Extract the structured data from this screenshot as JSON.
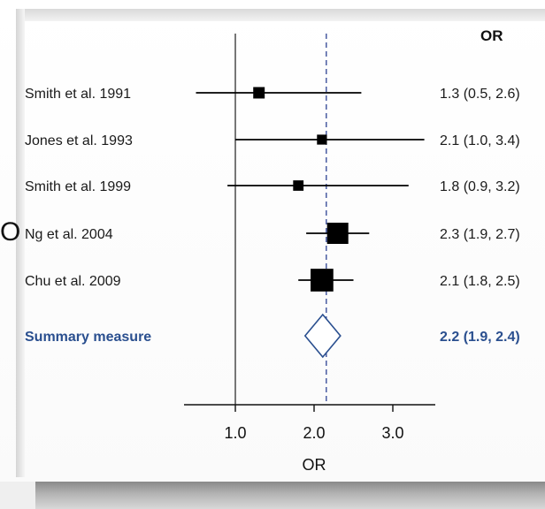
{
  "page_glyph": "O",
  "chart_data": {
    "type": "forest",
    "header": "OR",
    "xlabel": "OR",
    "xlim": [
      0.1,
      3.6
    ],
    "xticks": [
      1.0,
      2.0,
      3.0
    ],
    "xtick_labels": [
      "1.0",
      "2.0",
      "3.0"
    ],
    "null_line": 1.0,
    "reference_line": 2.2,
    "studies": [
      {
        "label": "Smith et al. 1991",
        "or": 1.3,
        "lo": 0.5,
        "hi": 2.6,
        "weight": 0.35,
        "text": "1.3 (0.5, 2.6)"
      },
      {
        "label": "Jones et al. 1993",
        "or": 2.1,
        "lo": 1.0,
        "hi": 3.4,
        "weight": 0.25,
        "text": "2.1 (1.0, 3.4)"
      },
      {
        "label": "Smith et al. 1999",
        "or": 1.8,
        "lo": 0.9,
        "hi": 3.2,
        "weight": 0.28,
        "text": "1.8 (0.9, 3.2)"
      },
      {
        "label": "Ng et al. 2004",
        "or": 2.3,
        "lo": 1.9,
        "hi": 2.7,
        "weight": 1.0,
        "text": "2.3 (1.9, 2.7)"
      },
      {
        "label": "Chu et al. 2009",
        "or": 2.1,
        "lo": 1.8,
        "hi": 2.5,
        "weight": 1.1,
        "text": "2.1 (1.8, 2.5)"
      }
    ],
    "summary": {
      "label": "Summary measure",
      "or": 2.2,
      "lo": 1.9,
      "hi": 2.4,
      "text": "2.2 (1.9, 2.4)"
    },
    "colors": {
      "summary": "#2a4f8f",
      "reference_line": "#3b4f9a",
      "marks": "#000000"
    }
  }
}
